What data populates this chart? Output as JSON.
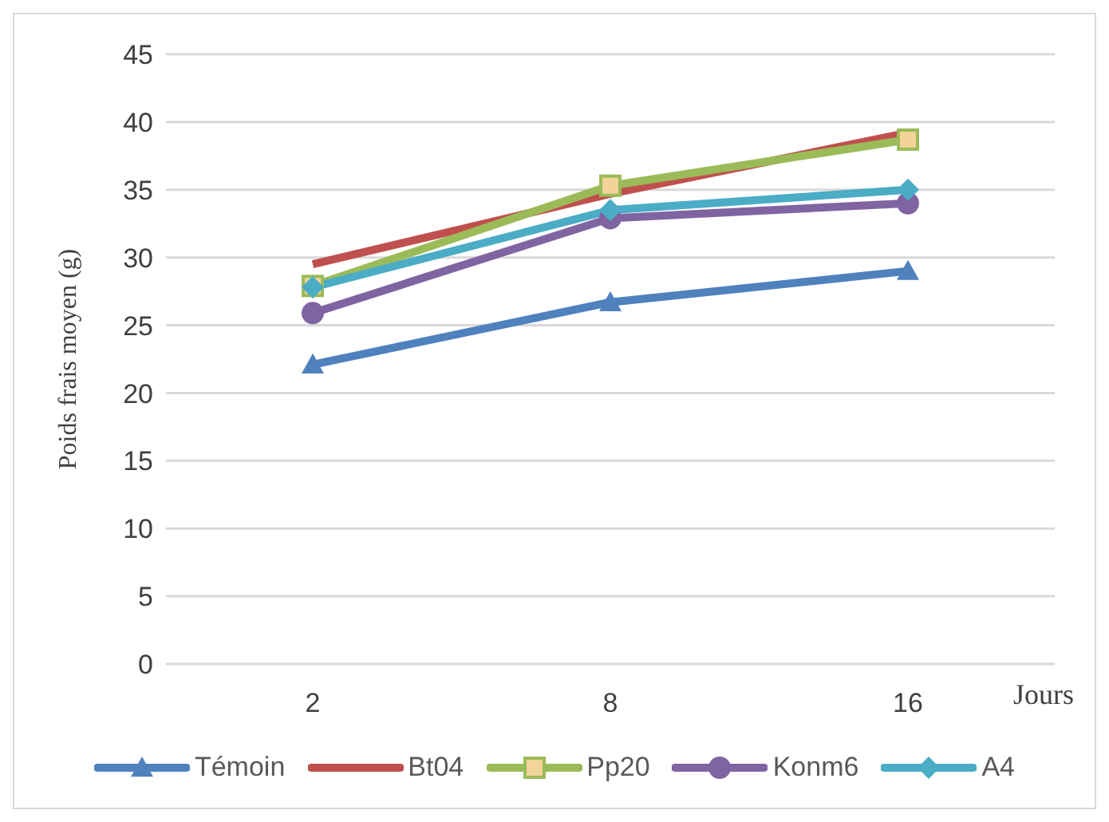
{
  "chart_data": {
    "type": "line",
    "ylabel": "Poids frais moyen (g)",
    "xlabel": "Jours",
    "categories": [
      "2",
      "8",
      "16"
    ],
    "ylim": [
      0,
      45
    ],
    "yticks": [
      0,
      5,
      10,
      15,
      20,
      25,
      30,
      35,
      40,
      45
    ],
    "grid": "y",
    "legend": "bottom",
    "line_style": "solid",
    "series": [
      {
        "name": "Témoin",
        "color": "#4f81bd",
        "marker": "triangle",
        "values": [
          22.1,
          26.7,
          29.0
        ]
      },
      {
        "name": "Bt04",
        "color": "#c0504d",
        "marker": "none",
        "values": [
          29.5,
          34.7,
          39.2
        ]
      },
      {
        "name": "Pp20",
        "color": "#9bbb59",
        "marker": "square",
        "values": [
          27.9,
          35.3,
          38.7
        ]
      },
      {
        "name": "Konm6",
        "color": "#8064a2",
        "marker": "circle",
        "values": [
          25.9,
          32.9,
          34.0
        ]
      },
      {
        "name": "A4",
        "color": "#4bacc6",
        "marker": "diamond",
        "values": [
          27.8,
          33.5,
          35.0
        ]
      }
    ]
  }
}
